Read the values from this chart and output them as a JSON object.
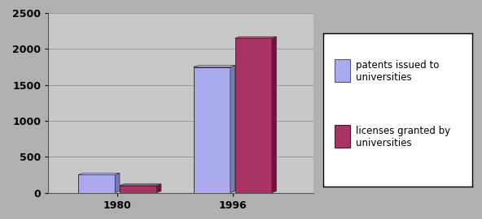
{
  "categories": [
    "1980",
    "1996"
  ],
  "patents": [
    250,
    1750
  ],
  "licenses": [
    100,
    2150
  ],
  "bar_color_patents": "#aaaaee",
  "bar_color_patents_dark": "#7777bb",
  "bar_color_patents_top": "#ccccff",
  "bar_color_licenses": "#aa3366",
  "bar_color_licenses_dark": "#771144",
  "bar_color_licenses_top": "#cc5588",
  "background_color": "#b0b0b0",
  "plot_bg_color": "#c8c8c8",
  "ylim": [
    0,
    2500
  ],
  "yticks": [
    0,
    500,
    1000,
    1500,
    2000,
    2500
  ],
  "bar_width": 0.32,
  "legend_fontsize": 8.5,
  "tick_fontsize": 9,
  "depth": 8
}
